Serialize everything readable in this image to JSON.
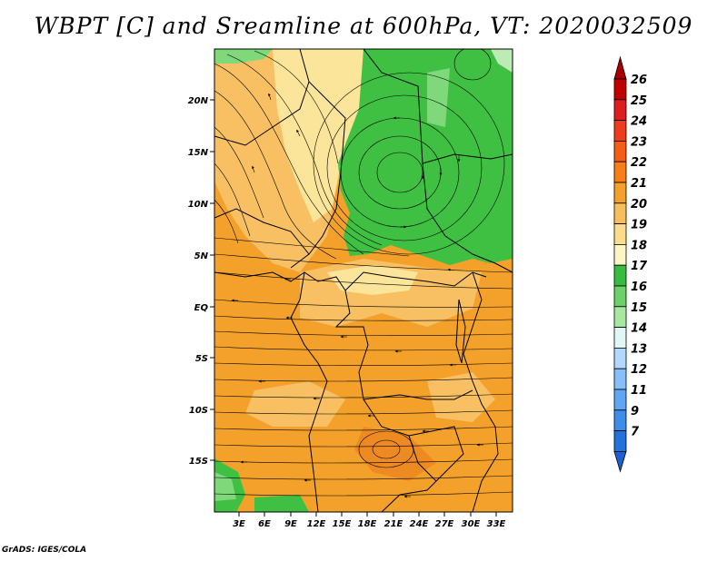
{
  "title": "WBPT [C] and Sreamline at 600hPa, VT: 2020032509",
  "credit": "GrADS: IGES/COLA",
  "map": {
    "lat_labels": [
      "20N",
      "15N",
      "10N",
      "5N",
      "EQ",
      "5S",
      "10S",
      "15S"
    ],
    "lon_labels": [
      "3E",
      "6E",
      "9E",
      "12E",
      "15E",
      "18E",
      "21E",
      "24E",
      "27E",
      "30E",
      "33E"
    ],
    "fill_colors": {
      "orange": "#f3a12b",
      "light_orange": "#f8c063",
      "pale_yellow": "#fbe59a",
      "green": "#3fc043",
      "light_green": "#7fd87a",
      "pale_green": "#bcebb6"
    }
  },
  "colorbar": {
    "levels": [
      "26",
      "25",
      "24",
      "23",
      "22",
      "21",
      "20",
      "19",
      "18",
      "17",
      "16",
      "15",
      "14",
      "13",
      "12",
      "11",
      "9",
      "7"
    ],
    "colors": [
      "#c00000",
      "#dc1e1e",
      "#ee3c1c",
      "#f55c14",
      "#f97e15",
      "#f5a02a",
      "#f8be5e",
      "#fadd8c",
      "#fbf6c4",
      "#37bc3f",
      "#6cd267",
      "#a9e6a2",
      "#e1f7f6",
      "#b3d8fb",
      "#86c0f9",
      "#5ea7f5",
      "#3e8ee8",
      "#2372dc"
    ],
    "top_arrow_color": "#a80000",
    "bottom_arrow_color": "#1c5fd0"
  }
}
